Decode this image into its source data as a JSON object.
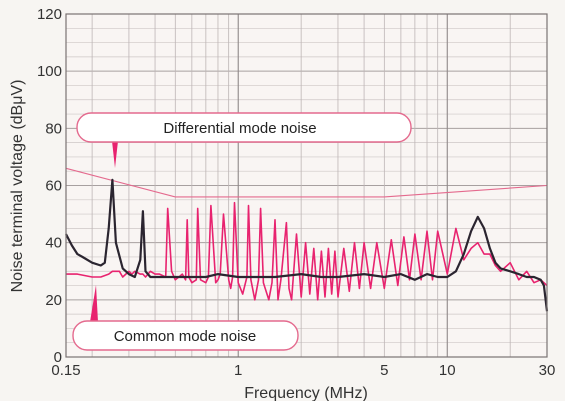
{
  "chart_data": {
    "type": "line",
    "xlabel": "Frequency (MHz)",
    "ylabel": "Noise terminal voltage (dBμV)",
    "x_scale": "log",
    "xlim": [
      0.15,
      30
    ],
    "ylim": [
      0,
      120
    ],
    "grid": true,
    "x_tick_labels": [
      {
        "value": 0.15,
        "label": "0.15"
      },
      {
        "value": 1,
        "label": "1"
      },
      {
        "value": 5,
        "label": "5"
      },
      {
        "value": 10,
        "label": "10"
      },
      {
        "value": 30,
        "label": "30"
      }
    ],
    "y_tick_labels": [
      "0",
      "20",
      "40",
      "60",
      "80",
      "100",
      "120"
    ],
    "y_ticks": [
      0,
      20,
      40,
      60,
      80,
      100,
      120
    ],
    "limit_line": {
      "x": [
        0.15,
        0.5,
        5,
        30
      ],
      "y": [
        66,
        56,
        56,
        60
      ],
      "color": "#e46a8e"
    },
    "series": [
      {
        "color": "#e8236f",
        "x": [
          0.15,
          0.17,
          0.2,
          0.22,
          0.24,
          0.25,
          0.26,
          0.27,
          0.28,
          0.3,
          0.31,
          0.32,
          0.34,
          0.35,
          0.36,
          0.38,
          0.4,
          0.42,
          0.45,
          0.46,
          0.48,
          0.5,
          0.52,
          0.54,
          0.56,
          0.57,
          0.58,
          0.6,
          0.63,
          0.64,
          0.66,
          0.7,
          0.72,
          0.74,
          0.78,
          0.8,
          0.82,
          0.85,
          0.9,
          0.92,
          0.94,
          0.96,
          1.0,
          1.05,
          1.1,
          1.12,
          1.15,
          1.2,
          1.25,
          1.28,
          1.32,
          1.4,
          1.45,
          1.5,
          1.55,
          1.6,
          1.7,
          1.75,
          1.8,
          1.9,
          2.0,
          2.1,
          2.2,
          2.3,
          2.4,
          2.5,
          2.6,
          2.7,
          2.8,
          2.9,
          3.0,
          3.2,
          3.4,
          3.6,
          3.8,
          4.0,
          4.3,
          4.6,
          5.0,
          5.4,
          5.8,
          6.2,
          6.6,
          7.0,
          7.5,
          8.0,
          8.5,
          9.0,
          10.0,
          11.0,
          12.0,
          13.0,
          14.0,
          15.0,
          16.0,
          17.0,
          18.0,
          20.0,
          22.0,
          24.0,
          26.0,
          28.0,
          30.0
        ],
        "y": [
          29,
          29,
          28,
          28,
          29,
          30,
          30,
          30,
          28,
          30,
          29,
          30,
          29,
          29,
          28,
          30,
          29,
          29,
          28,
          52,
          30,
          27,
          28,
          29,
          27,
          48,
          28,
          26,
          27,
          52,
          27,
          26,
          28,
          53,
          26,
          27,
          29,
          50,
          27,
          24,
          28,
          54,
          26,
          22,
          28,
          53,
          27,
          20,
          27,
          52,
          26,
          20,
          26,
          48,
          20,
          27,
          47,
          24,
          20,
          43,
          21,
          40,
          22,
          38,
          20,
          37,
          21,
          38,
          22,
          37,
          21,
          38,
          23,
          40,
          24,
          40,
          24,
          40,
          24,
          41,
          25,
          42,
          27,
          43,
          27,
          44,
          27,
          44,
          29,
          45,
          34,
          38,
          40,
          36,
          36,
          32,
          30,
          33,
          27,
          30,
          26,
          27,
          25
        ]
      },
      {
        "color": "#2b2530",
        "x": [
          0.15,
          0.16,
          0.17,
          0.18,
          0.2,
          0.22,
          0.23,
          0.24,
          0.25,
          0.26,
          0.28,
          0.3,
          0.32,
          0.34,
          0.35,
          0.36,
          0.38,
          0.4,
          0.45,
          0.5,
          0.6,
          0.7,
          0.8,
          1.0,
          1.2,
          1.5,
          2.0,
          2.5,
          3.0,
          4.0,
          5.0,
          6.0,
          7.0,
          8.0,
          9.0,
          10.0,
          11.0,
          12.0,
          13.0,
          14.0,
          15.0,
          16.0,
          17.0,
          18.0,
          20.0,
          22.0,
          24.0,
          26.0,
          28.0,
          29.0,
          30.0
        ],
        "y": [
          43,
          39,
          36,
          35,
          33,
          32,
          33,
          45,
          62,
          40,
          31,
          29,
          28,
          34,
          51,
          30,
          28,
          28,
          28,
          28,
          28,
          28,
          29,
          28,
          28,
          28,
          29,
          28,
          28,
          29,
          28,
          29,
          27,
          29,
          28,
          28,
          30,
          36,
          44,
          49,
          45,
          38,
          33,
          31,
          30,
          29,
          28,
          28,
          27,
          25,
          16
        ]
      }
    ],
    "annotations": [
      {
        "text": "Differential mode noise"
      },
      {
        "text": "Common mode noise"
      }
    ]
  }
}
